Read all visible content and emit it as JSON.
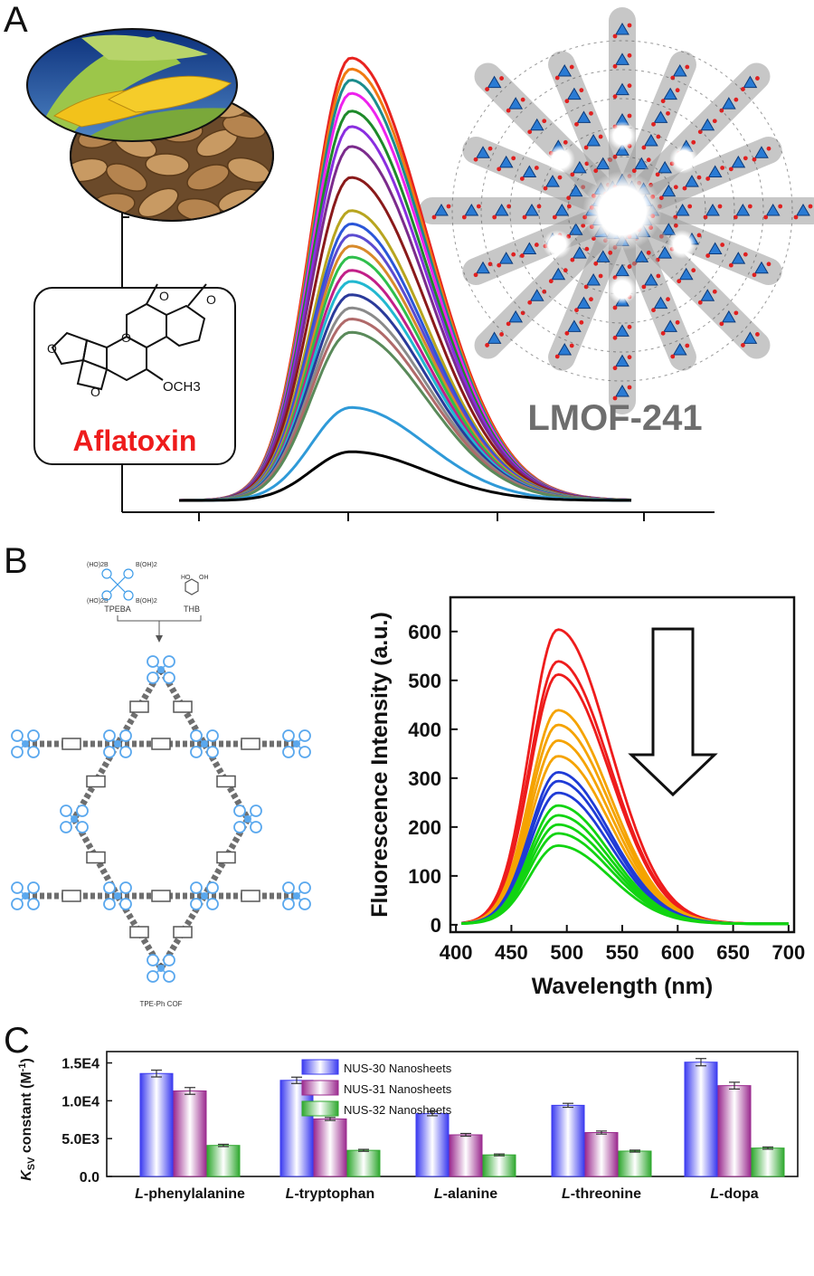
{
  "panels": {
    "a": {
      "letter": "A",
      "molecule_label": "Aflatoxin",
      "molecule_group": "OCH3",
      "framework_label": "LMOF-241",
      "chart_data": {
        "type": "line",
        "title": "",
        "xlabel": "",
        "ylabel": "",
        "peak_x_rel": 0.38,
        "series": [
          {
            "color": "#e8231f",
            "peak": 1.0
          },
          {
            "color": "#f07a12",
            "peak": 0.975
          },
          {
            "color": "#1b8c8c",
            "peak": 0.95
          },
          {
            "color": "#ee22ee",
            "peak": 0.92
          },
          {
            "color": "#1e8a2a",
            "peak": 0.88
          },
          {
            "color": "#8a2ee0",
            "peak": 0.845
          },
          {
            "color": "#7b2b8c",
            "peak": 0.8
          },
          {
            "color": "#8a1a1a",
            "peak": 0.73
          },
          {
            "color": "#b8a51f",
            "peak": 0.655
          },
          {
            "color": "#2b56d8",
            "peak": 0.625
          },
          {
            "color": "#5b4bd0",
            "peak": 0.6
          },
          {
            "color": "#d88a2a",
            "peak": 0.575
          },
          {
            "color": "#2fbf4c",
            "peak": 0.55
          },
          {
            "color": "#c21f88",
            "peak": 0.52
          },
          {
            "color": "#22b8d0",
            "peak": 0.495
          },
          {
            "color": "#2a3a9a",
            "peak": 0.465
          },
          {
            "color": "#8a8a8a",
            "peak": 0.435
          },
          {
            "color": "#b06a6a",
            "peak": 0.41
          },
          {
            "color": "#5a8a5a",
            "peak": 0.38
          },
          {
            "color": "#2f9ad8",
            "peak": 0.21
          },
          {
            "color": "#000000",
            "peak": 0.11
          }
        ]
      }
    },
    "b": {
      "letter": "B",
      "precursor1": "TPEBA",
      "precursor2": "THB",
      "precursor1_group_tl": "(HO)2B",
      "precursor1_group_tr": "B(OH)2",
      "precursor1_group_bl": "(HO)2B",
      "precursor1_group_br": "B(OH)2",
      "precursor2_group_1": "HO",
      "precursor2_group_2": "OH",
      "cof_label": "TPE-Ph COF",
      "chart_data": {
        "type": "line",
        "xlabel": "Wavelength (nm)",
        "ylabel": "Fluorescence Intensity (a.u.)",
        "xlim": [
          395,
          705
        ],
        "ylim": [
          -15,
          670
        ],
        "xticks": [
          400,
          450,
          500,
          550,
          600,
          650,
          700
        ],
        "yticks": [
          0,
          100,
          200,
          300,
          400,
          500,
          600
        ],
        "series": [
          {
            "color": "#ee1c1c",
            "peak": 602
          },
          {
            "color": "#ee1c1c",
            "peak": 537
          },
          {
            "color": "#ee1c1c",
            "peak": 510
          },
          {
            "color": "#f5a300",
            "peak": 437
          },
          {
            "color": "#f5a300",
            "peak": 407
          },
          {
            "color": "#f5a300",
            "peak": 375
          },
          {
            "color": "#f5a300",
            "peak": 343
          },
          {
            "color": "#1f3bd6",
            "peak": 310
          },
          {
            "color": "#1f3bd6",
            "peak": 292
          },
          {
            "color": "#1f3bd6",
            "peak": 268
          },
          {
            "color": "#11d411",
            "peak": 242
          },
          {
            "color": "#11d411",
            "peak": 222
          },
          {
            "color": "#11d411",
            "peak": 203
          },
          {
            "color": "#11d411",
            "peak": 185
          },
          {
            "color": "#11d411",
            "peak": 160
          }
        ]
      }
    },
    "c": {
      "letter": "C",
      "chart_data": {
        "type": "bar",
        "categories": [
          "L-phenylalanine",
          "L-tryptophan",
          "L-alanine",
          "L-threonine",
          "L-dopa"
        ],
        "category_prefix": "L",
        "category_suffixes": [
          "-phenylalanine",
          "-tryptophan",
          "-alanine",
          "-threonine",
          "-dopa"
        ],
        "ylabel_main": "K",
        "ylabel_sub": "SV",
        "ylabel_rest": " constant (M",
        "ylabel_sup": "-1",
        "ylabel_end": ")",
        "ylim": [
          0,
          16500
        ],
        "yticks": [
          0,
          5000,
          10000,
          15000
        ],
        "ytick_labels": [
          "0.0",
          "5.0E3",
          "1.0E4",
          "1.5E4"
        ],
        "series": [
          {
            "name": "NUS-30 Nanosheets",
            "color": "#3b3bf0",
            "values": [
              13600,
              12700,
              8300,
              9400,
              15100
            ],
            "errors": [
              450,
              420,
              280,
              260,
              480
            ]
          },
          {
            "name": "NUS-31 Nanosheets",
            "color": "#9b2b8f",
            "values": [
              11300,
              7600,
              5500,
              5800,
              12000
            ],
            "errors": [
              450,
              200,
              180,
              200,
              450
            ]
          },
          {
            "name": "NUS-32 Nanosheets",
            "color": "#2fa82f",
            "values": [
              4100,
              3450,
              2850,
              3350,
              3750
            ],
            "errors": [
              150,
              130,
              120,
              130,
              140
            ]
          }
        ],
        "legend_position": "top-center"
      }
    }
  }
}
